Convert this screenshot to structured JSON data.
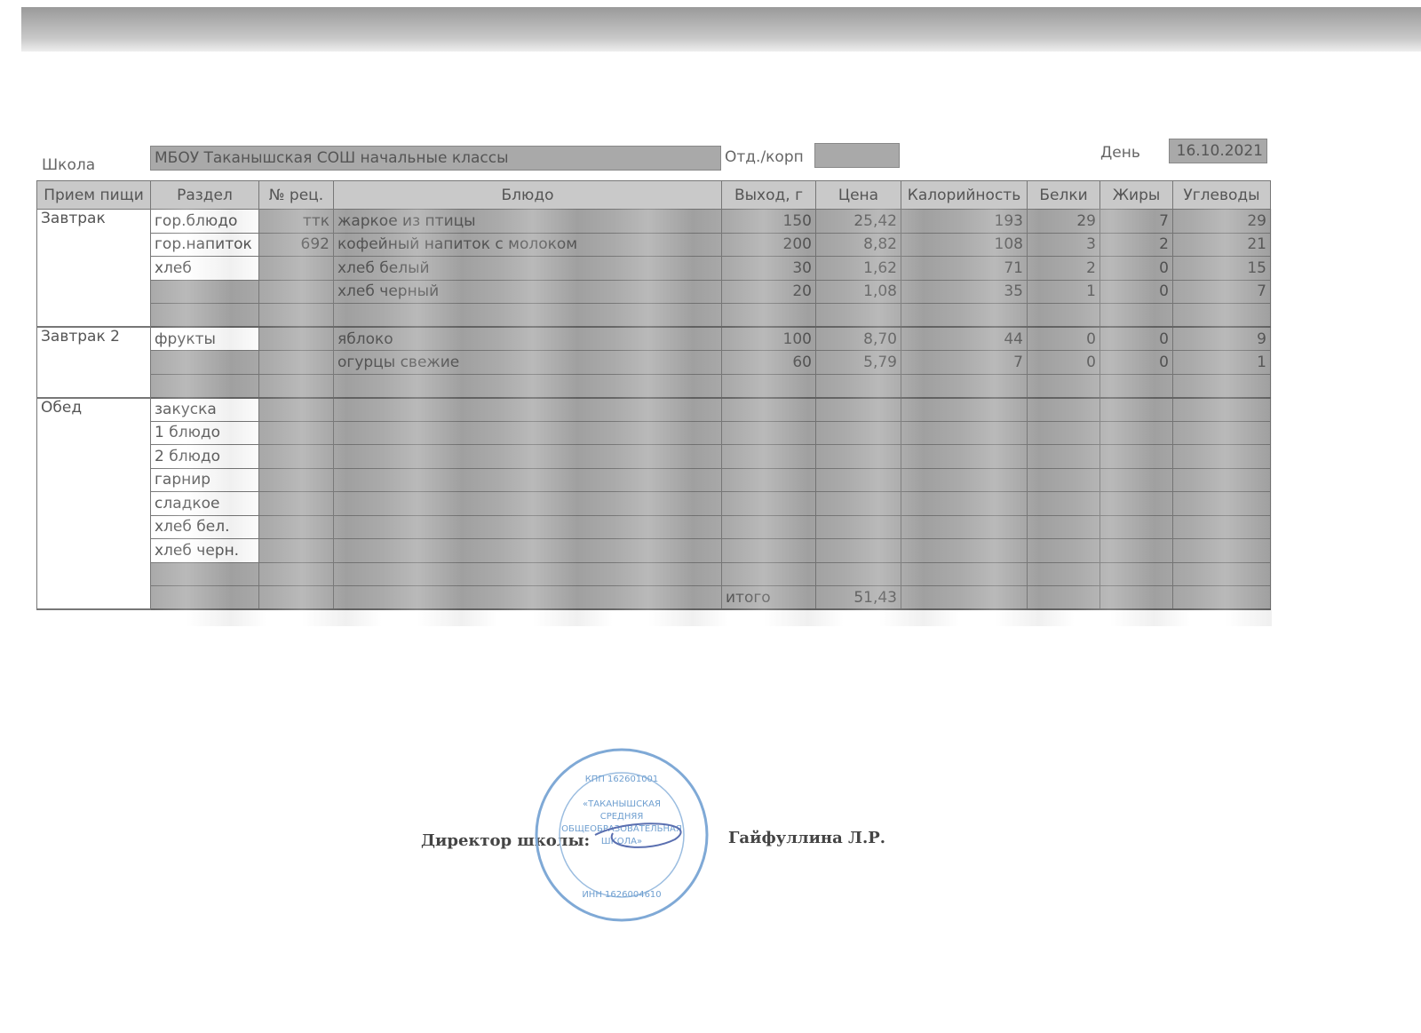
{
  "header": {
    "school_label": "Школа",
    "school": "МБОУ Таканышская СОШ  начальные классы",
    "dept_label": "Отд./корп",
    "dept": "",
    "day_label": "День",
    "day": "16.10.2021"
  },
  "columns": [
    "Прием пищи",
    "Раздел",
    "№ рец.",
    "Блюдо",
    "Выход, г",
    "Цена",
    "Калорийность",
    "Белки",
    "Жиры",
    "Углеводы"
  ],
  "rows": [
    {
      "meal": "Завтрак",
      "section": "гор.блюдо",
      "recipe": "ттк",
      "dish": "жаркое из птицы",
      "yield": "150",
      "price": "25,42",
      "kcal": "193",
      "protein": "29",
      "fat": "7",
      "carbs": "29"
    },
    {
      "meal": "",
      "section": "гор.напиток",
      "recipe": "692",
      "dish": "кофейный напиток с молоком",
      "yield": "200",
      "price": "8,82",
      "kcal": "108",
      "protein": "3",
      "fat": "2",
      "carbs": "21"
    },
    {
      "meal": "",
      "section": "хлеб",
      "recipe": "",
      "dish": "хлеб белый",
      "yield": "30",
      "price": "1,62",
      "kcal": "71",
      "protein": "2",
      "fat": "0",
      "carbs": "15"
    },
    {
      "meal": "",
      "section": "",
      "recipe": "",
      "dish": "хлеб черный",
      "yield": "20",
      "price": "1,08",
      "kcal": "35",
      "protein": "1",
      "fat": "0",
      "carbs": "7"
    },
    {
      "meal": "",
      "section": "",
      "recipe": "",
      "dish": "",
      "yield": "",
      "price": "",
      "kcal": "",
      "protein": "",
      "fat": "",
      "carbs": ""
    },
    {
      "meal": "Завтрак 2",
      "section": "фрукты",
      "recipe": "",
      "dish": "яблоко",
      "yield": "100",
      "price": "8,70",
      "kcal": "44",
      "protein": "0",
      "fat": "0",
      "carbs": "9"
    },
    {
      "meal": "",
      "section": "",
      "recipe": "",
      "dish": "огурцы свежие",
      "yield": "60",
      "price": "5,79",
      "kcal": "7",
      "protein": "0",
      "fat": "0",
      "carbs": "1"
    },
    {
      "meal": "",
      "section": "",
      "recipe": "",
      "dish": "",
      "yield": "",
      "price": "",
      "kcal": "",
      "protein": "",
      "fat": "",
      "carbs": ""
    },
    {
      "meal": "Обед",
      "section": "закуска",
      "recipe": "",
      "dish": "",
      "yield": "",
      "price": "",
      "kcal": "",
      "protein": "",
      "fat": "",
      "carbs": ""
    },
    {
      "meal": "",
      "section": "1 блюдо",
      "recipe": "",
      "dish": "",
      "yield": "",
      "price": "",
      "kcal": "",
      "protein": "",
      "fat": "",
      "carbs": ""
    },
    {
      "meal": "",
      "section": "2 блюдо",
      "recipe": "",
      "dish": "",
      "yield": "",
      "price": "",
      "kcal": "",
      "protein": "",
      "fat": "",
      "carbs": ""
    },
    {
      "meal": "",
      "section": "гарнир",
      "recipe": "",
      "dish": "",
      "yield": "",
      "price": "",
      "kcal": "",
      "protein": "",
      "fat": "",
      "carbs": ""
    },
    {
      "meal": "",
      "section": "сладкое",
      "recipe": "",
      "dish": "",
      "yield": "",
      "price": "",
      "kcal": "",
      "protein": "",
      "fat": "",
      "carbs": ""
    },
    {
      "meal": "",
      "section": "хлеб бел.",
      "recipe": "",
      "dish": "",
      "yield": "",
      "price": "",
      "kcal": "",
      "protein": "",
      "fat": "",
      "carbs": ""
    },
    {
      "meal": "",
      "section": "хлеб черн.",
      "recipe": "",
      "dish": "",
      "yield": "",
      "price": "",
      "kcal": "",
      "protein": "",
      "fat": "",
      "carbs": ""
    },
    {
      "meal": "",
      "section": "",
      "recipe": "",
      "dish": "",
      "yield": "",
      "price": "",
      "kcal": "",
      "protein": "",
      "fat": "",
      "carbs": ""
    },
    {
      "meal": "",
      "section": "",
      "recipe": "",
      "dish": "",
      "yield": "итого",
      "price": "51,43",
      "kcal": "",
      "protein": "",
      "fat": "",
      "carbs": ""
    }
  ],
  "footer": {
    "position": "Директор школы:",
    "name": "Гайфуллина Л.Р."
  },
  "stamp": {
    "lines": [
      "«ТАКАНЫШСКАЯ",
      "СРЕДНЯЯ",
      "ОБЩЕОБРАЗОВАТЕЛЬНАЯ",
      "ШКОЛА»"
    ],
    "kpp": "КПП 162601001",
    "inn": "ИНН 1626004610",
    "color": "#6f9fd0"
  }
}
